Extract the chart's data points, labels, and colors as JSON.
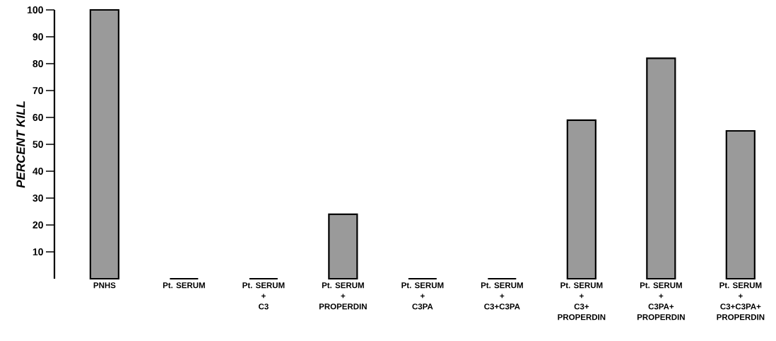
{
  "chart_data": {
    "type": "bar",
    "ylabel": "PERCENT KILL",
    "categories": [
      "PNHS",
      "Pt. SERUM",
      "Pt. SERUM\n+\nC3",
      "Pt. SERUM\n+\nPROPERDIN",
      "Pt. SERUM\n+\nC3PA",
      "Pt. SERUM\n+\nC3+C3PA",
      "Pt. SERUM\n+\nC3+\nPROPERDIN",
      "Pt. SERUM\n+\nC3PA+\nPROPERDIN",
      "Pt. SERUM\n+\nC3+C3PA+\nPROPERDIN"
    ],
    "values": [
      100,
      0,
      0,
      24,
      0,
      0,
      59,
      82,
      55
    ],
    "colors": [
      "#9a9a9a",
      "#000000",
      "#000000",
      "#9a9a9a",
      "#000000",
      "#000000",
      "#9a9a9a",
      "#9a9a9a",
      "#9a9a9a"
    ],
    "ylim": [
      0,
      100
    ],
    "yticks": [
      10,
      20,
      30,
      40,
      50,
      60,
      70,
      80,
      90,
      100
    ]
  }
}
